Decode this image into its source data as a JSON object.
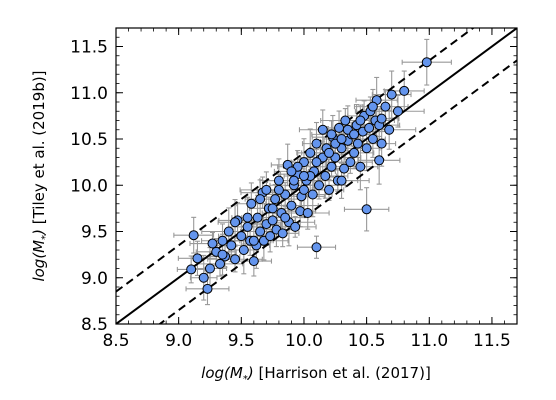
{
  "chart_data": {
    "type": "scatter",
    "xlabel_math": "log(M",
    "xlabel_sub": "*",
    "xlabel_close": ")",
    "xlabel_rest": " [Harrison et al. (2017)]",
    "ylabel_math": "log(M",
    "ylabel_sub": "*",
    "ylabel_close": ")",
    "ylabel_rest": " [Tiley et al. (2019b)]",
    "xlim": [
      8.5,
      11.7
    ],
    "ylim": [
      8.5,
      11.7
    ],
    "xticks": [
      "8.5",
      "9.0",
      "9.5",
      "10.0",
      "10.5",
      "11.0",
      "11.5"
    ],
    "yticks": [
      "8.5",
      "9.0",
      "9.5",
      "10.0",
      "10.5",
      "11.0",
      "11.5"
    ],
    "grid": false,
    "marker_color": "#6495ED",
    "marker_edge": "#000000",
    "errorbar_color": "#999999",
    "lines": [
      {
        "style": "solid",
        "offset": 0.0
      },
      {
        "style": "dashed",
        "offset": 0.35
      },
      {
        "style": "dashed",
        "offset": -0.35
      }
    ],
    "points": [
      [
        9.12,
        9.46
      ],
      [
        9.1,
        9.09
      ],
      [
        9.15,
        9.21
      ],
      [
        9.2,
        9.0
      ],
      [
        9.23,
        8.88
      ],
      [
        9.25,
        9.1
      ],
      [
        9.27,
        9.37
      ],
      [
        9.3,
        9.28
      ],
      [
        9.33,
        9.15
      ],
      [
        9.35,
        9.4
      ],
      [
        9.37,
        9.23
      ],
      [
        9.4,
        9.5
      ],
      [
        9.42,
        9.35
      ],
      [
        9.45,
        9.2
      ],
      [
        9.47,
        9.62
      ],
      [
        9.5,
        9.45
      ],
      [
        9.52,
        9.3
      ],
      [
        9.55,
        9.55
      ],
      [
        9.57,
        9.4
      ],
      [
        9.58,
        9.8
      ],
      [
        9.6,
        9.18
      ],
      [
        9.62,
        9.35
      ],
      [
        9.63,
        9.65
      ],
      [
        9.65,
        9.5
      ],
      [
        9.67,
        9.92
      ],
      [
        9.68,
        9.4
      ],
      [
        9.7,
        9.58
      ],
      [
        9.72,
        9.75
      ],
      [
        9.73,
        9.45
      ],
      [
        9.75,
        9.62
      ],
      [
        9.77,
        9.85
      ],
      [
        9.78,
        9.52
      ],
      [
        9.8,
        10.05
      ],
      [
        9.82,
        9.7
      ],
      [
        9.83,
        9.48
      ],
      [
        9.85,
        9.9
      ],
      [
        9.87,
        10.22
      ],
      [
        9.88,
        9.6
      ],
      [
        9.9,
        9.78
      ],
      [
        9.92,
        10.0
      ],
      [
        9.93,
        9.55
      ],
      [
        9.95,
        10.12
      ],
      [
        9.97,
        9.72
      ],
      [
        9.98,
        9.88
      ],
      [
        10.0,
        10.25
      ],
      [
        10.02,
        10.05
      ],
      [
        10.03,
        9.7
      ],
      [
        10.05,
        10.35
      ],
      [
        10.07,
        9.9
      ],
      [
        10.08,
        10.15
      ],
      [
        10.1,
        10.45
      ],
      [
        10.12,
        10.0
      ],
      [
        10.13,
        10.28
      ],
      [
        10.15,
        10.6
      ],
      [
        10.17,
        10.1
      ],
      [
        10.18,
        10.4
      ],
      [
        10.2,
        9.95
      ],
      [
        10.22,
        10.2
      ],
      [
        10.23,
        10.52
      ],
      [
        10.25,
        10.3
      ],
      [
        10.27,
        10.05
      ],
      [
        10.28,
        10.62
      ],
      [
        10.3,
        10.4
      ],
      [
        10.32,
        10.18
      ],
      [
        10.33,
        10.7
      ],
      [
        10.35,
        10.48
      ],
      [
        10.37,
        10.25
      ],
      [
        10.38,
        10.55
      ],
      [
        10.4,
        10.35
      ],
      [
        10.42,
        10.65
      ],
      [
        10.43,
        10.45
      ],
      [
        10.45,
        10.2
      ],
      [
        10.47,
        10.58
      ],
      [
        10.48,
        10.75
      ],
      [
        10.5,
        10.4
      ],
      [
        10.52,
        10.62
      ],
      [
        10.53,
        10.8
      ],
      [
        10.55,
        10.5
      ],
      [
        10.57,
        10.7
      ],
      [
        10.58,
        10.92
      ],
      [
        10.6,
        10.65
      ],
      [
        10.62,
        10.45
      ],
      [
        10.65,
        10.85
      ],
      [
        10.68,
        10.6
      ],
      [
        10.7,
        10.98
      ],
      [
        10.75,
        10.8
      ],
      [
        10.8,
        11.02
      ],
      [
        10.98,
        11.33
      ],
      [
        10.6,
        10.27
      ],
      [
        10.5,
        9.74
      ],
      [
        10.1,
        9.33
      ],
      [
        10.3,
        10.05
      ],
      [
        10.15,
        10.3
      ],
      [
        10.0,
        9.95
      ],
      [
        9.95,
        10.2
      ],
      [
        10.05,
        10.1
      ],
      [
        10.25,
        10.45
      ],
      [
        10.35,
        10.6
      ],
      [
        10.4,
        10.55
      ],
      [
        9.85,
        9.65
      ],
      [
        9.75,
        9.75
      ],
      [
        9.9,
        10.15
      ],
      [
        10.2,
        10.35
      ],
      [
        10.45,
        10.7
      ],
      [
        9.65,
        9.85
      ],
      [
        9.55,
        9.65
      ],
      [
        9.45,
        9.6
      ],
      [
        9.8,
        9.95
      ],
      [
        10.1,
        10.25
      ],
      [
        10.3,
        10.5
      ],
      [
        9.7,
        9.95
      ],
      [
        10.0,
        10.1
      ],
      [
        10.22,
        10.55
      ],
      [
        10.55,
        10.85
      ],
      [
        10.62,
        10.72
      ],
      [
        9.35,
        9.25
      ],
      [
        9.6,
        9.4
      ],
      [
        9.92,
        10.05
      ]
    ]
  }
}
